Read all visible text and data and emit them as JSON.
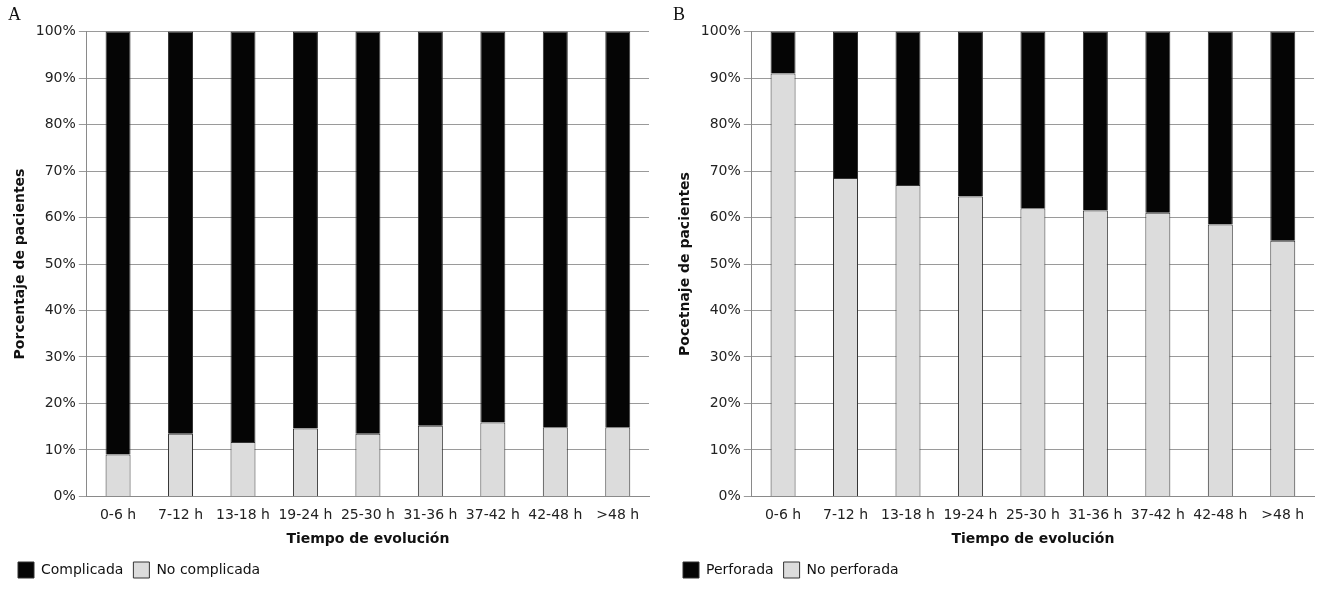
{
  "chart_data": [
    {
      "type": "bar",
      "title": "A",
      "xlabel": "Tiempo de evolución",
      "ylabel": "Porcentaje de pacientes",
      "stacked": true,
      "categories": [
        "0-6 h",
        "7-12 h",
        "13-18 h",
        "19-24 h",
        "25-30 h",
        "31-36 h",
        "37-42 h",
        "42-48 h",
        ">48 h"
      ],
      "series": [
        {
          "name": "No complicada",
          "color": "#dcdcdc",
          "values": [
            9,
            13.5,
            11.7,
            14.6,
            13.5,
            15.2,
            15.9,
            14.9,
            14.9
          ]
        },
        {
          "name": "Complicada",
          "color": "#050505",
          "values": [
            91,
            86.5,
            88.3,
            85.4,
            86.5,
            84.8,
            84.1,
            85.1,
            85.1
          ]
        }
      ],
      "ylim": [
        0,
        100
      ],
      "yticks": [
        {
          "value": 0,
          "label": "0%"
        },
        {
          "value": 10,
          "label": "10%"
        },
        {
          "value": 20,
          "label": "20%"
        },
        {
          "value": 30,
          "label": "30%"
        },
        {
          "value": 40,
          "label": "40%"
        },
        {
          "value": 50,
          "label": "50%"
        },
        {
          "value": 60,
          "label": "60%"
        },
        {
          "value": 70,
          "label": "70%"
        },
        {
          "value": 80,
          "label": "80%"
        },
        {
          "value": 90,
          "label": "90%"
        },
        {
          "value": 100,
          "label": "100%"
        }
      ],
      "grid": "y",
      "legend": "bottom left"
    },
    {
      "type": "bar",
      "title": "B",
      "xlabel": "Tiempo de evolución",
      "ylabel": "Pocetnaje de pacientes",
      "stacked": true,
      "categories": [
        "0-6 h",
        "7-12 h",
        "13-18 h",
        "19-24 h",
        "25-30 h",
        "31-36 h",
        "37-42 h",
        "42-48 h",
        ">48 h"
      ],
      "series": [
        {
          "name": "No perforada",
          "color": "#dcdcdc",
          "values": [
            91,
            68.5,
            67,
            64.5,
            62,
            61.5,
            61,
            58.5,
            55
          ]
        },
        {
          "name": "Perforada",
          "color": "#050505",
          "values": [
            9,
            31.5,
            33,
            35.5,
            38,
            38.5,
            39,
            41.5,
            45
          ]
        }
      ],
      "ylim": [
        0,
        100
      ],
      "yticks": [
        {
          "value": 0,
          "label": "0%"
        },
        {
          "value": 10,
          "label": "10%"
        },
        {
          "value": 20,
          "label": "20%"
        },
        {
          "value": 30,
          "label": "30%"
        },
        {
          "value": 40,
          "label": "40%"
        },
        {
          "value": 50,
          "label": "50%"
        },
        {
          "value": 60,
          "label": "60%"
        },
        {
          "value": 70,
          "label": "70%"
        },
        {
          "value": 80,
          "label": "80%"
        },
        {
          "value": 90,
          "label": "90%"
        },
        {
          "value": 100,
          "label": "100%"
        }
      ],
      "grid": "y",
      "legend": "bottom left"
    }
  ]
}
